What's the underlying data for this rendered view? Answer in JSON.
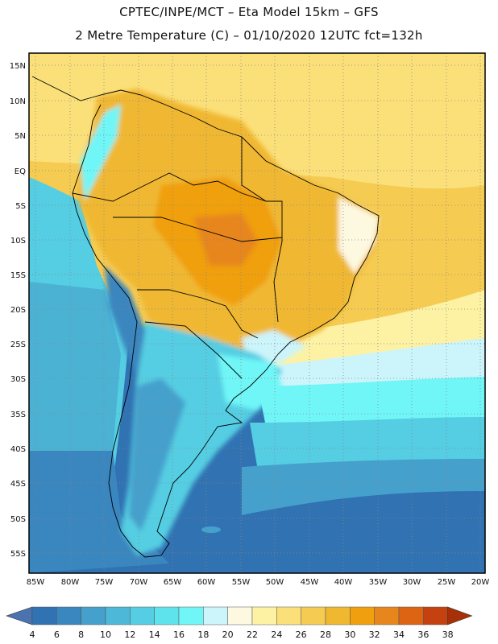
{
  "header": {
    "line1": "CPTEC/INPE/MCT –  Eta Model 15km – GFS",
    "line2": "2 Metre Temperature (C) – 01/10/2020 12UTC fct=132h"
  },
  "map": {
    "lat_labels": [
      "15N",
      "10N",
      "5N",
      "EQ",
      "5S",
      "10S",
      "15S",
      "20S",
      "25S",
      "30S",
      "35S",
      "40S",
      "45S",
      "50S",
      "55S"
    ],
    "lon_labels": [
      "85W",
      "80W",
      "75W",
      "70W",
      "65W",
      "60W",
      "55W",
      "50W",
      "45W",
      "40W",
      "35W",
      "30W",
      "25W",
      "20W"
    ],
    "lat_range": [
      15,
      55
    ],
    "lon_range": [
      85,
      20
    ],
    "grid": "dotted"
  },
  "colorbar": {
    "labels": [
      "4",
      "6",
      "8",
      "10",
      "12",
      "14",
      "16",
      "18",
      "20",
      "22",
      "24",
      "26",
      "28",
      "30",
      "32",
      "34",
      "36",
      "38"
    ],
    "colors": [
      "#4a73b0",
      "#3072b2",
      "#3a86bf",
      "#45a0cc",
      "#4db8d8",
      "#55cde2",
      "#5ee3ec",
      "#70f6f7",
      "#ccf4fb",
      "#fdf8e0",
      "#fdf2a4",
      "#fbe07a",
      "#f5cb52",
      "#f0b830",
      "#f09f0f",
      "#e7861c",
      "#dc6412",
      "#c54110",
      "#a83008"
    ]
  }
}
